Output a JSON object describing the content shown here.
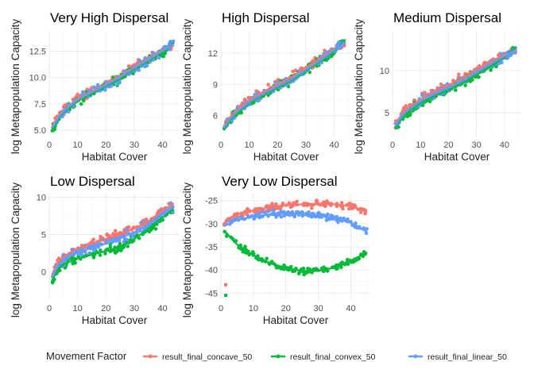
{
  "colors": {
    "concave": "#F8766D",
    "convex": "#00BA38",
    "linear": "#619CFF",
    "grid_major": "#ebebeb",
    "grid_minor": "#f3f3f3"
  },
  "legend": {
    "title": "Movement Factor",
    "placement": "bottom",
    "entries": [
      "result_final_concave_50",
      "result_final_convex_50",
      "result_final_linear_50"
    ]
  },
  "chart_data": [
    {
      "type": "scatter",
      "title": "Very High Dispersal",
      "xlabel": "Habitat Cover",
      "ylabel": "log Metapopulation Capacity",
      "xlim": [
        0,
        46
      ],
      "ylim": [
        4.4,
        14.5
      ],
      "xticks": [
        0,
        10,
        20,
        30,
        40
      ],
      "yticks": [
        5.0,
        7.5,
        10.0,
        12.5
      ],
      "ytick_labels": [
        "5.0",
        "7.5",
        "10.0",
        "12.5"
      ],
      "grid": true,
      "trend": {
        "x": [
          1,
          3,
          5,
          10,
          15,
          20,
          25,
          30,
          35,
          40,
          44
        ],
        "concave": [
          5.4,
          6.3,
          6.9,
          8.0,
          8.7,
          9.4,
          10.1,
          11.0,
          11.8,
          12.6,
          13.1
        ],
        "convex": [
          5.1,
          6.0,
          6.7,
          7.8,
          8.5,
          9.2,
          9.9,
          10.8,
          11.6,
          12.4,
          13.3
        ],
        "linear": [
          5.2,
          6.1,
          6.8,
          7.9,
          8.6,
          9.3,
          10.0,
          10.9,
          11.7,
          12.5,
          13.2
        ]
      },
      "spread": 0.35
    },
    {
      "type": "scatter",
      "title": "High Dispersal",
      "xlabel": "Habitat Cover",
      "ylabel": "",
      "xlim": [
        0,
        46
      ],
      "ylim": [
        4.0,
        14.2
      ],
      "xticks": [
        0,
        10,
        20,
        30,
        40
      ],
      "yticks": [
        6,
        9,
        12
      ],
      "ytick_labels": [
        "6",
        "9",
        "12"
      ],
      "grid": true,
      "trend": {
        "x": [
          1,
          3,
          5,
          10,
          15,
          20,
          25,
          30,
          35,
          40,
          44
        ],
        "concave": [
          5.0,
          5.8,
          6.4,
          7.5,
          8.3,
          9.0,
          9.7,
          10.6,
          11.5,
          12.4,
          13.0
        ],
        "convex": [
          4.6,
          5.5,
          6.1,
          7.2,
          8.0,
          8.7,
          9.4,
          10.3,
          11.2,
          12.2,
          13.3
        ],
        "linear": [
          4.8,
          5.6,
          6.2,
          7.3,
          8.1,
          8.8,
          9.5,
          10.4,
          11.3,
          12.3,
          13.1
        ]
      },
      "spread": 0.35
    },
    {
      "type": "scatter",
      "title": "Medium Dispersal",
      "xlabel": "Habitat Cover",
      "ylabel": "",
      "xlim": [
        0,
        46
      ],
      "ylim": [
        2.2,
        14.8
      ],
      "xticks": [
        0,
        10,
        20,
        30,
        40
      ],
      "yticks": [
        5,
        10
      ],
      "ytick_labels": [
        "5",
        "10"
      ],
      "grid": true,
      "trend": {
        "x": [
          1,
          3,
          5,
          10,
          15,
          20,
          25,
          30,
          35,
          40,
          44
        ],
        "concave": [
          3.6,
          4.7,
          5.5,
          6.6,
          7.5,
          8.3,
          9.1,
          10.1,
          11.0,
          11.9,
          12.4
        ],
        "convex": [
          3.2,
          4.3,
          5.0,
          6.2,
          7.0,
          7.7,
          8.5,
          9.5,
          10.5,
          11.6,
          12.8
        ],
        "linear": [
          3.4,
          4.5,
          5.2,
          6.4,
          7.2,
          8.0,
          8.8,
          9.8,
          10.8,
          11.7,
          12.5
        ]
      },
      "spread": 0.45
    },
    {
      "type": "scatter",
      "title": "Low Dispersal",
      "xlabel": "Habitat Cover",
      "ylabel": "log Metapopulation Capacity",
      "xlim": [
        0,
        46
      ],
      "ylim": [
        -3.8,
        10.5
      ],
      "xticks": [
        0,
        10,
        20,
        30,
        40
      ],
      "yticks": [
        0,
        5,
        10
      ],
      "ytick_labels": [
        "0",
        "5",
        "10"
      ],
      "grid": true,
      "trend": {
        "x": [
          1,
          3,
          5,
          10,
          15,
          20,
          25,
          30,
          35,
          40,
          44
        ],
        "concave": [
          -0.5,
          1.2,
          2.0,
          3.1,
          3.8,
          4.4,
          5.0,
          5.8,
          6.8,
          8.2,
          9.2
        ],
        "convex": [
          -1.2,
          0.3,
          1.0,
          1.8,
          2.3,
          2.8,
          3.3,
          4.4,
          5.8,
          7.3,
          8.4
        ],
        "linear": [
          -0.8,
          0.8,
          1.6,
          2.6,
          3.2,
          3.8,
          4.5,
          5.3,
          6.4,
          7.8,
          8.7
        ]
      },
      "spread": 0.55
    },
    {
      "type": "scatter",
      "title": "Very Low Dispersal",
      "xlabel": "Habitat Cover",
      "ylabel": "log Metapopulation Capacity",
      "xlim": [
        0,
        46
      ],
      "ylim": [
        -46.5,
        -23.5
      ],
      "xticks": [
        0,
        10,
        20,
        30,
        40
      ],
      "yticks": [
        -45,
        -40,
        -35,
        -30,
        -25
      ],
      "ytick_labels": [
        "-45",
        "-40",
        "-35",
        "-30",
        "-25"
      ],
      "grid": true,
      "trend": {
        "x": [
          1,
          3,
          5,
          10,
          15,
          20,
          25,
          30,
          35,
          40,
          45
        ],
        "concave": [
          -30.0,
          -28.6,
          -28.0,
          -27.1,
          -26.5,
          -26.0,
          -25.8,
          -25.7,
          -25.8,
          -26.2,
          -27.5
        ],
        "convex": [
          -31.5,
          -33.0,
          -34.5,
          -36.8,
          -38.5,
          -39.6,
          -40.2,
          -40.2,
          -39.5,
          -38.0,
          -36.2
        ],
        "linear": [
          -30.5,
          -29.8,
          -29.2,
          -28.5,
          -28.0,
          -27.8,
          -27.8,
          -28.2,
          -28.8,
          -29.8,
          -31.8
        ]
      },
      "outliers": {
        "concave": [
          [
            1.5,
            -43.2
          ]
        ],
        "convex": [
          [
            1.5,
            -45.5
          ]
        ]
      },
      "spread": 0.6
    }
  ]
}
